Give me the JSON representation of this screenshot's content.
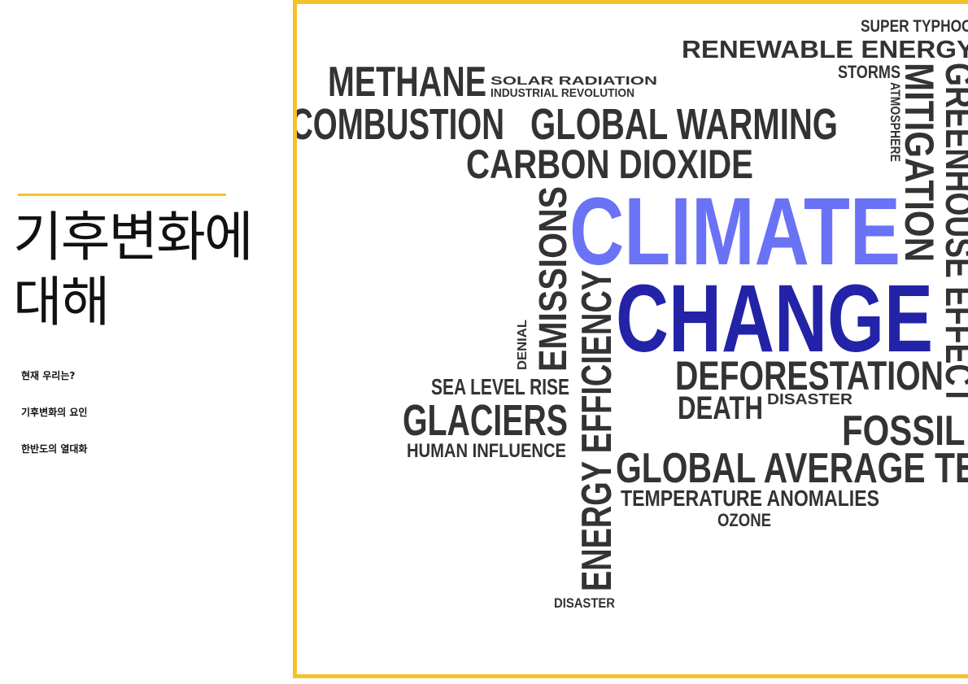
{
  "slide": {
    "title_line1": "기후변화에",
    "title_line2": "대해",
    "agenda": [
      "현재 우리는?",
      "기후변화의 요인",
      "한반도의 열대화"
    ]
  },
  "colors": {
    "accent": "#f6c12c",
    "word_dark": "#333333",
    "climate": "#6a72f5",
    "change": "#2323a8"
  },
  "wordcloud": {
    "words": {
      "super_typhoon": "SUPER TYPHOON",
      "renewable_energy": "RENEWABLE ENERGY",
      "methane": "METHANE",
      "solar_radiation": "SOLAR RADIATION",
      "industrial_revolution": "INDUSTRIAL REVOLUTION",
      "storms": "STORMS",
      "atmosphere": "ATMOSPHERE",
      "mitigation": "MITIGATION",
      "greenhouse_effect": "GREENHOUSE EFFECT",
      "combustion": "COMBUSTION",
      "global_warming": "GLOBAL WARMING",
      "carbon_dioxide": "CARBON DIOXIDE",
      "emissions": "EMISSIONS",
      "climate": "CLIMATE",
      "change": "CHANGE",
      "energy_efficiency": "ENERGY EFFICIENCY",
      "denial": "DENIAL",
      "deforestation": "DEFORESTATION",
      "death": "DEATH",
      "disaster": "DISASTER",
      "sea_level_rise": "SEA LEVEL RISE",
      "glaciers": "GLACIERS",
      "human_influence": "HUMAN INFLUENCE",
      "fossil_fuels": "FOSSIL FUELS",
      "global_average_temperature": "GLOBAL AVERAGE TEMPERATURE",
      "temperature_anomalies": "TEMPERATURE ANOMALIES",
      "ozone": "OZONE",
      "disaster_bottom": "DISASTER"
    }
  }
}
